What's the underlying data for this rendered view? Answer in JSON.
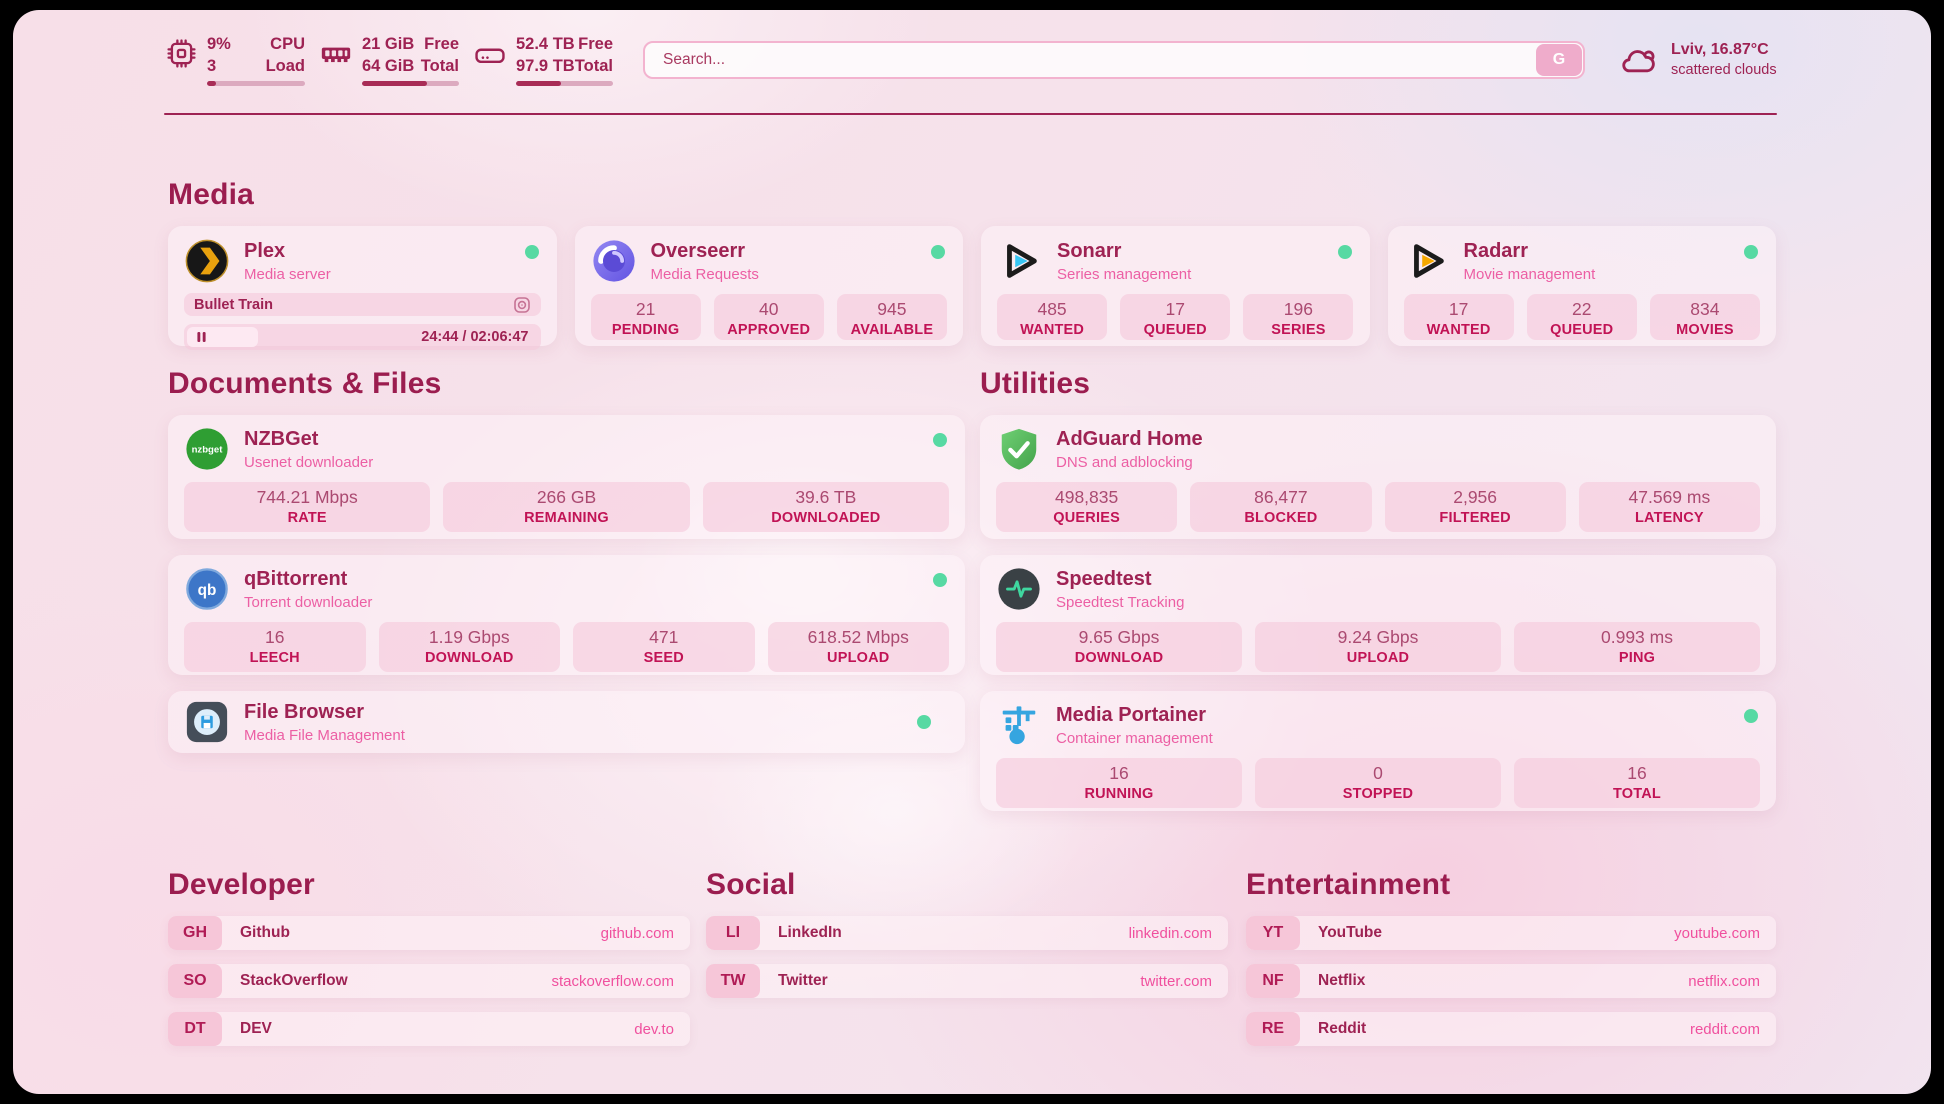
{
  "colors": {
    "accent_maroon": "#9e2253",
    "heading": "#9b1d4f",
    "subtitle_pink": "#ec5fa4",
    "stat_label_crimson": "#c11355",
    "stat_value": "#ab4a71",
    "url_pink": "#f0509e",
    "status_online_green": "#57d9a3",
    "progress_fill": "#a82c56",
    "search_border_pink": "#f3b3cf"
  },
  "header": {
    "cpu": {
      "icon": "cpu-chip-icon",
      "percent": "9%",
      "load": "3",
      "label_top": "CPU",
      "label_bottom": "Load",
      "progress_pct": 9
    },
    "memory": {
      "icon": "ram-icon",
      "free": "21 GiB",
      "total": "64 GiB",
      "label_top": "Free",
      "label_bottom": "Total",
      "progress_pct": 67
    },
    "disk": {
      "icon": "disk-icon",
      "free": "52.4 TB",
      "total": "97.9 TB",
      "label_top": "Free",
      "label_bottom": "Total",
      "progress_pct": 46
    },
    "search": {
      "placeholder": "Search...",
      "provider_button": "G"
    },
    "weather": {
      "icon": "cloud-icon",
      "location_temperature": "Lviv, 16.87°C",
      "condition": "scattered clouds"
    }
  },
  "sections": {
    "media": {
      "title": "Media",
      "plex": {
        "icon": "plex-icon",
        "name": "Plex",
        "subtitle": "Media server",
        "status": "online",
        "now_playing": {
          "title": "Bullet Train",
          "time": "24:44 / 02:06:47",
          "progress_pct": 20
        }
      },
      "overseerr": {
        "icon": "overseerr-icon",
        "name": "Overseerr",
        "subtitle": "Media Requests",
        "status": "online",
        "stats": [
          {
            "value": "21",
            "label": "PENDING"
          },
          {
            "value": "40",
            "label": "APPROVED"
          },
          {
            "value": "945",
            "label": "AVAILABLE"
          }
        ]
      },
      "sonarr": {
        "icon": "sonarr-icon",
        "name": "Sonarr",
        "subtitle": "Series management",
        "status": "online",
        "stats": [
          {
            "value": "485",
            "label": "WANTED"
          },
          {
            "value": "17",
            "label": "QUEUED"
          },
          {
            "value": "196",
            "label": "SERIES"
          }
        ]
      },
      "radarr": {
        "icon": "radarr-icon",
        "name": "Radarr",
        "subtitle": "Movie management",
        "status": "online",
        "stats": [
          {
            "value": "17",
            "label": "WANTED"
          },
          {
            "value": "22",
            "label": "QUEUED"
          },
          {
            "value": "834",
            "label": "MOVIES"
          }
        ]
      }
    },
    "documents": {
      "title": "Documents & Files",
      "nzbget": {
        "icon": "nzbget-icon",
        "name": "NZBGet",
        "subtitle": "Usenet downloader",
        "status": "online",
        "stats": [
          {
            "value": "744.21 Mbps",
            "label": "RATE"
          },
          {
            "value": "266 GB",
            "label": "REMAINING"
          },
          {
            "value": "39.6 TB",
            "label": "DOWNLOADED"
          }
        ]
      },
      "qbittorrent": {
        "icon": "qbittorrent-icon",
        "name": "qBittorrent",
        "subtitle": "Torrent downloader",
        "status": "online",
        "stats": [
          {
            "value": "16",
            "label": "LEECH"
          },
          {
            "value": "1.19 Gbps",
            "label": "DOWNLOAD"
          },
          {
            "value": "471",
            "label": "SEED"
          },
          {
            "value": "618.52 Mbps",
            "label": "UPLOAD"
          }
        ]
      },
      "filebrowser": {
        "icon": "filebrowser-icon",
        "name": "File Browser",
        "subtitle": "Media File Management",
        "status": "online"
      }
    },
    "utilities": {
      "title": "Utilities",
      "adguard": {
        "icon": "adguard-icon",
        "name": "AdGuard Home",
        "subtitle": "DNS and adblocking",
        "stats": [
          {
            "value": "498,835",
            "label": "QUERIES"
          },
          {
            "value": "86,477",
            "label": "BLOCKED"
          },
          {
            "value": "2,956",
            "label": "FILTERED"
          },
          {
            "value": "47.569 ms",
            "label": "LATENCY"
          }
        ]
      },
      "speedtest": {
        "icon": "speedtest-icon",
        "name": "Speedtest",
        "subtitle": "Speedtest Tracking",
        "stats": [
          {
            "value": "9.65 Gbps",
            "label": "DOWNLOAD"
          },
          {
            "value": "9.24 Gbps",
            "label": "UPLOAD"
          },
          {
            "value": "0.993 ms",
            "label": "PING"
          }
        ]
      },
      "portainer": {
        "icon": "portainer-icon",
        "name": "Media Portainer",
        "subtitle": "Container management",
        "status": "online",
        "stats": [
          {
            "value": "16",
            "label": "RUNNING"
          },
          {
            "value": "0",
            "label": "STOPPED"
          },
          {
            "value": "16",
            "label": "TOTAL"
          }
        ]
      }
    },
    "developer": {
      "title": "Developer",
      "links": [
        {
          "abbr": "GH",
          "name": "Github",
          "url": "github.com"
        },
        {
          "abbr": "SO",
          "name": "StackOverflow",
          "url": "stackoverflow.com"
        },
        {
          "abbr": "DT",
          "name": "DEV",
          "url": "dev.to"
        }
      ]
    },
    "social": {
      "title": "Social",
      "links": [
        {
          "abbr": "LI",
          "name": "LinkedIn",
          "url": "linkedin.com"
        },
        {
          "abbr": "TW",
          "name": "Twitter",
          "url": "twitter.com"
        }
      ]
    },
    "entertainment": {
      "title": "Entertainment",
      "links": [
        {
          "abbr": "YT",
          "name": "YouTube",
          "url": "youtube.com"
        },
        {
          "abbr": "NF",
          "name": "Netflix",
          "url": "netflix.com"
        },
        {
          "abbr": "RE",
          "name": "Reddit",
          "url": "reddit.com"
        }
      ]
    }
  }
}
